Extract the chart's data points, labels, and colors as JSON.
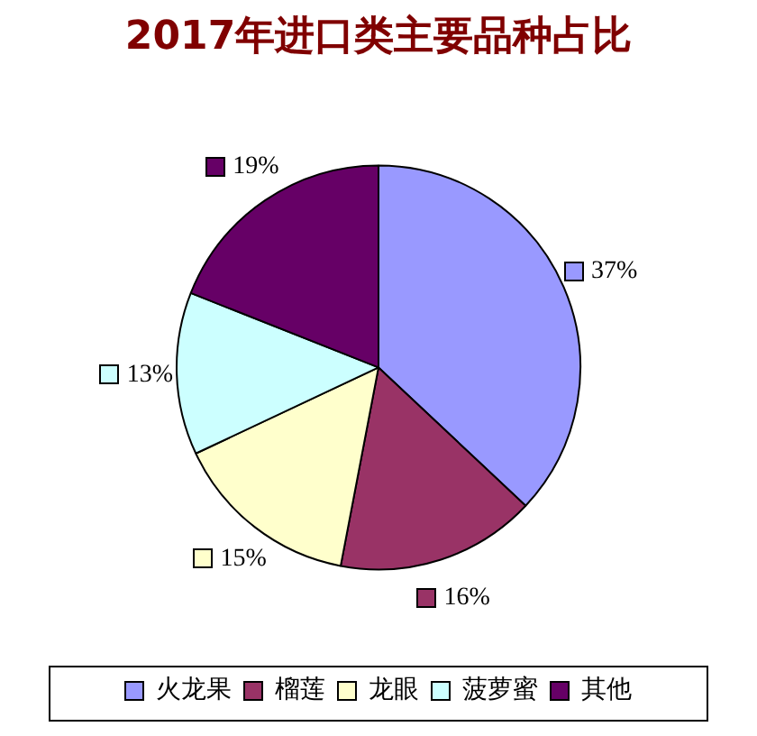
{
  "chart_data": {
    "type": "pie",
    "title": "2017年进口类主要品种占比",
    "categories": [
      "火龙果",
      "榴莲",
      "龙眼",
      "菠萝蜜",
      "其他"
    ],
    "values": [
      37,
      16,
      15,
      13,
      19
    ],
    "value_labels": [
      "37%",
      "16%",
      "15%",
      "13%",
      "19%"
    ],
    "colors": [
      "#9999ff",
      "#993366",
      "#ffffcc",
      "#ccffff",
      "#660066"
    ],
    "legend": "bottom"
  }
}
